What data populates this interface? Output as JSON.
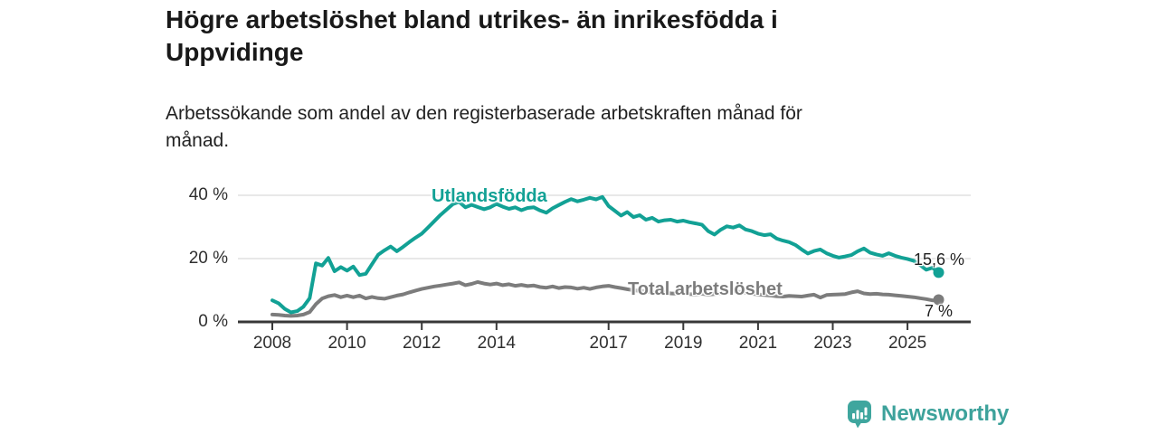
{
  "chart_data": {
    "type": "line",
    "title": "Högre arbetslöshet bland utrikes- än inrikesfödda i\nUppvidinge",
    "subtitle": "Arbetssökande som andel av den registerbaserade arbetskraften månad för\nmånad.",
    "xlabel": "",
    "ylabel": "",
    "ylim": [
      0,
      40
    ],
    "xlim": [
      2008,
      2025.9
    ],
    "grid": "horizontal",
    "legend_position": "inline-labels",
    "y_ticks": [
      {
        "value": 0,
        "label": "0 %"
      },
      {
        "value": 20,
        "label": "20 %"
      },
      {
        "value": 40,
        "label": "40 %"
      }
    ],
    "x_tick_years": [
      2008,
      2010,
      2012,
      2014,
      2017,
      2019,
      2021,
      2023,
      2025
    ],
    "x_tick_labels": [
      "2008",
      "2010",
      "2012",
      "2014",
      "2017",
      "2019",
      "2021",
      "2023",
      "2025"
    ],
    "series": [
      {
        "id": "utlandsfodda",
        "name": "Utlandsfödda",
        "color": "#12A195",
        "end_label": "15,6 %",
        "end_value": 15.6,
        "start_year": 2008,
        "step_months": 2,
        "values": [
          6.8,
          5.9,
          4.1,
          3.0,
          3.4,
          4.8,
          7.5,
          18.5,
          17.8,
          20.2,
          16.0,
          17.3,
          16.2,
          17.5,
          14.8,
          15.2,
          18.2,
          21.2,
          22.6,
          23.8,
          22.3,
          23.7,
          25.2,
          26.6,
          27.9,
          29.8,
          31.8,
          33.8,
          35.5,
          37.2,
          37.9,
          36.2,
          37.0,
          36.3,
          35.6,
          36.2,
          37.3,
          36.4,
          35.7,
          36.2,
          35.3,
          36.0,
          36.2,
          35.2,
          34.5,
          35.9,
          36.9,
          37.9,
          38.8,
          38.1,
          38.6,
          39.2,
          38.7,
          39.5,
          36.6,
          35.1,
          33.6,
          34.7,
          33.1,
          33.7,
          32.3,
          32.9,
          31.7,
          32.1,
          32.3,
          31.7,
          32.0,
          31.5,
          31.1,
          30.7,
          28.7,
          27.6,
          29.1,
          30.2,
          29.8,
          30.5,
          29.2,
          28.7,
          27.9,
          27.4,
          27.7,
          26.3,
          25.7,
          25.2,
          24.3,
          22.9,
          21.6,
          22.4,
          22.9,
          21.7,
          20.9,
          20.3,
          20.7,
          21.1,
          22.3,
          23.2,
          21.9,
          21.3,
          20.9,
          21.7,
          20.9,
          20.3,
          19.9,
          19.3,
          18.0,
          16.5,
          17.1,
          15.6
        ]
      },
      {
        "id": "total-arbetsloshet",
        "name": "Total arbetslöshet",
        "color": "#7C7C7C",
        "end_label": "7 %",
        "end_value": 7,
        "start_year": 2008,
        "step_months": 2,
        "values": [
          2.3,
          2.2,
          2.0,
          1.9,
          2.0,
          2.3,
          3.1,
          5.6,
          7.4,
          8.1,
          8.5,
          7.8,
          8.3,
          7.8,
          8.3,
          7.4,
          7.9,
          7.5,
          7.3,
          7.8,
          8.3,
          8.7,
          9.3,
          9.9,
          10.4,
          10.8,
          11.2,
          11.5,
          11.8,
          12.1,
          12.5,
          11.6,
          12.0,
          12.6,
          12.1,
          11.8,
          12.1,
          11.6,
          11.9,
          11.4,
          11.7,
          11.3,
          11.5,
          11.0,
          10.8,
          11.2,
          10.7,
          11.0,
          10.9,
          10.5,
          10.8,
          10.4,
          10.9,
          11.2,
          11.4,
          11.0,
          10.7,
          10.3,
          10.0,
          9.8,
          9.6,
          9.3,
          9.1,
          9.3,
          9.0,
          8.9,
          9.1,
          8.8,
          8.7,
          8.9,
          8.6,
          8.8,
          9.0,
          9.4,
          9.7,
          9.5,
          9.2,
          8.9,
          8.7,
          8.5,
          8.3,
          8.1,
          8.0,
          8.2,
          8.1,
          8.0,
          8.3,
          8.6,
          7.7,
          8.5,
          8.6,
          8.7,
          8.8,
          9.3,
          9.7,
          9.0,
          8.8,
          8.9,
          8.7,
          8.6,
          8.4,
          8.2,
          8.0,
          7.8,
          7.5,
          7.2,
          6.8,
          7.0
        ]
      }
    ],
    "colors": {
      "accent_teal": "#12A195",
      "neutral_gray": "#7C7C7C",
      "axis": "#383838",
      "grid": "#d9d9d9"
    }
  },
  "attribution": {
    "brand": "Newsworthy",
    "logo_icon": "newsworthy-pin-barchart-icon",
    "color": "#3DA29B"
  }
}
